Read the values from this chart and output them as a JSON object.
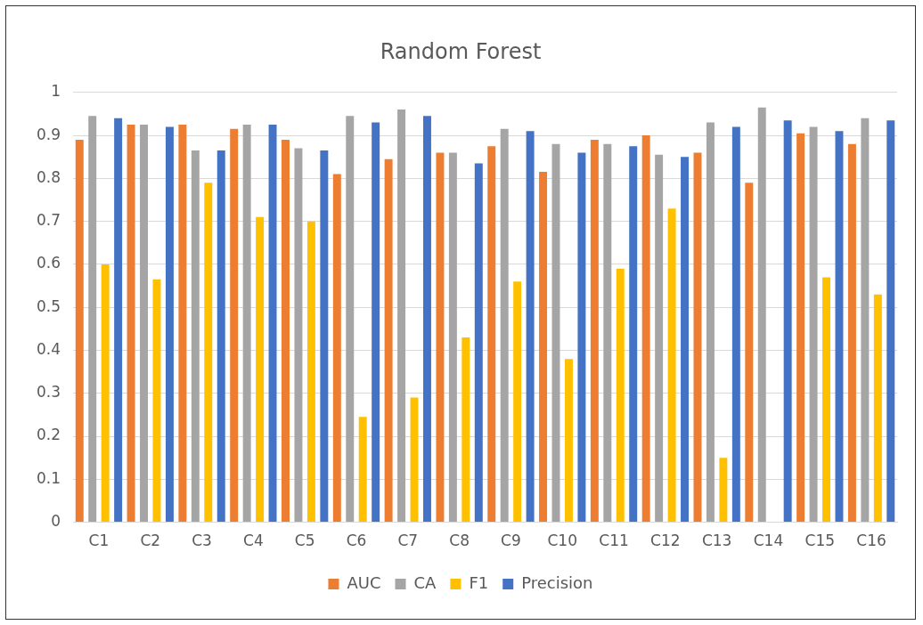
{
  "chart_data": {
    "type": "bar",
    "title": "Random Forest",
    "categories": [
      "C1",
      "C2",
      "C3",
      "C4",
      "C5",
      "C6",
      "C7",
      "C8",
      "C9",
      "C10",
      "C11",
      "C12",
      "C13",
      "C14",
      "C15",
      "C16"
    ],
    "series": [
      {
        "name": "AUC",
        "color": "#ed7d31",
        "values": [
          0.89,
          0.925,
          0.925,
          0.915,
          0.89,
          0.81,
          0.845,
          0.86,
          0.875,
          0.815,
          0.89,
          0.9,
          0.86,
          0.79,
          0.905,
          0.88
        ]
      },
      {
        "name": "CA",
        "color": "#a5a5a5",
        "values": [
          0.945,
          0.925,
          0.865,
          0.925,
          0.87,
          0.945,
          0.96,
          0.86,
          0.915,
          0.88,
          0.88,
          0.855,
          0.93,
          0.965,
          0.92,
          0.94
        ]
      },
      {
        "name": "F1",
        "color": "#ffc000",
        "values": [
          0.6,
          0.565,
          0.79,
          0.71,
          0.7,
          0.245,
          0.29,
          0.43,
          0.56,
          0.38,
          0.59,
          0.73,
          0.15,
          0,
          0.57,
          0.53
        ]
      },
      {
        "name": "Precision",
        "color": "#4472c4",
        "values": [
          0.94,
          0.92,
          0.865,
          0.925,
          0.865,
          0.93,
          0.945,
          0.835,
          0.91,
          0.86,
          0.875,
          0.85,
          0.92,
          0.935,
          0.91,
          0.935
        ]
      }
    ],
    "ylim": [
      0,
      1
    ],
    "yticks": [
      0,
      0.1,
      0.2,
      0.3,
      0.4,
      0.5,
      0.6,
      0.7,
      0.8,
      0.9,
      1
    ],
    "grid": "y",
    "legend": "bottom"
  }
}
